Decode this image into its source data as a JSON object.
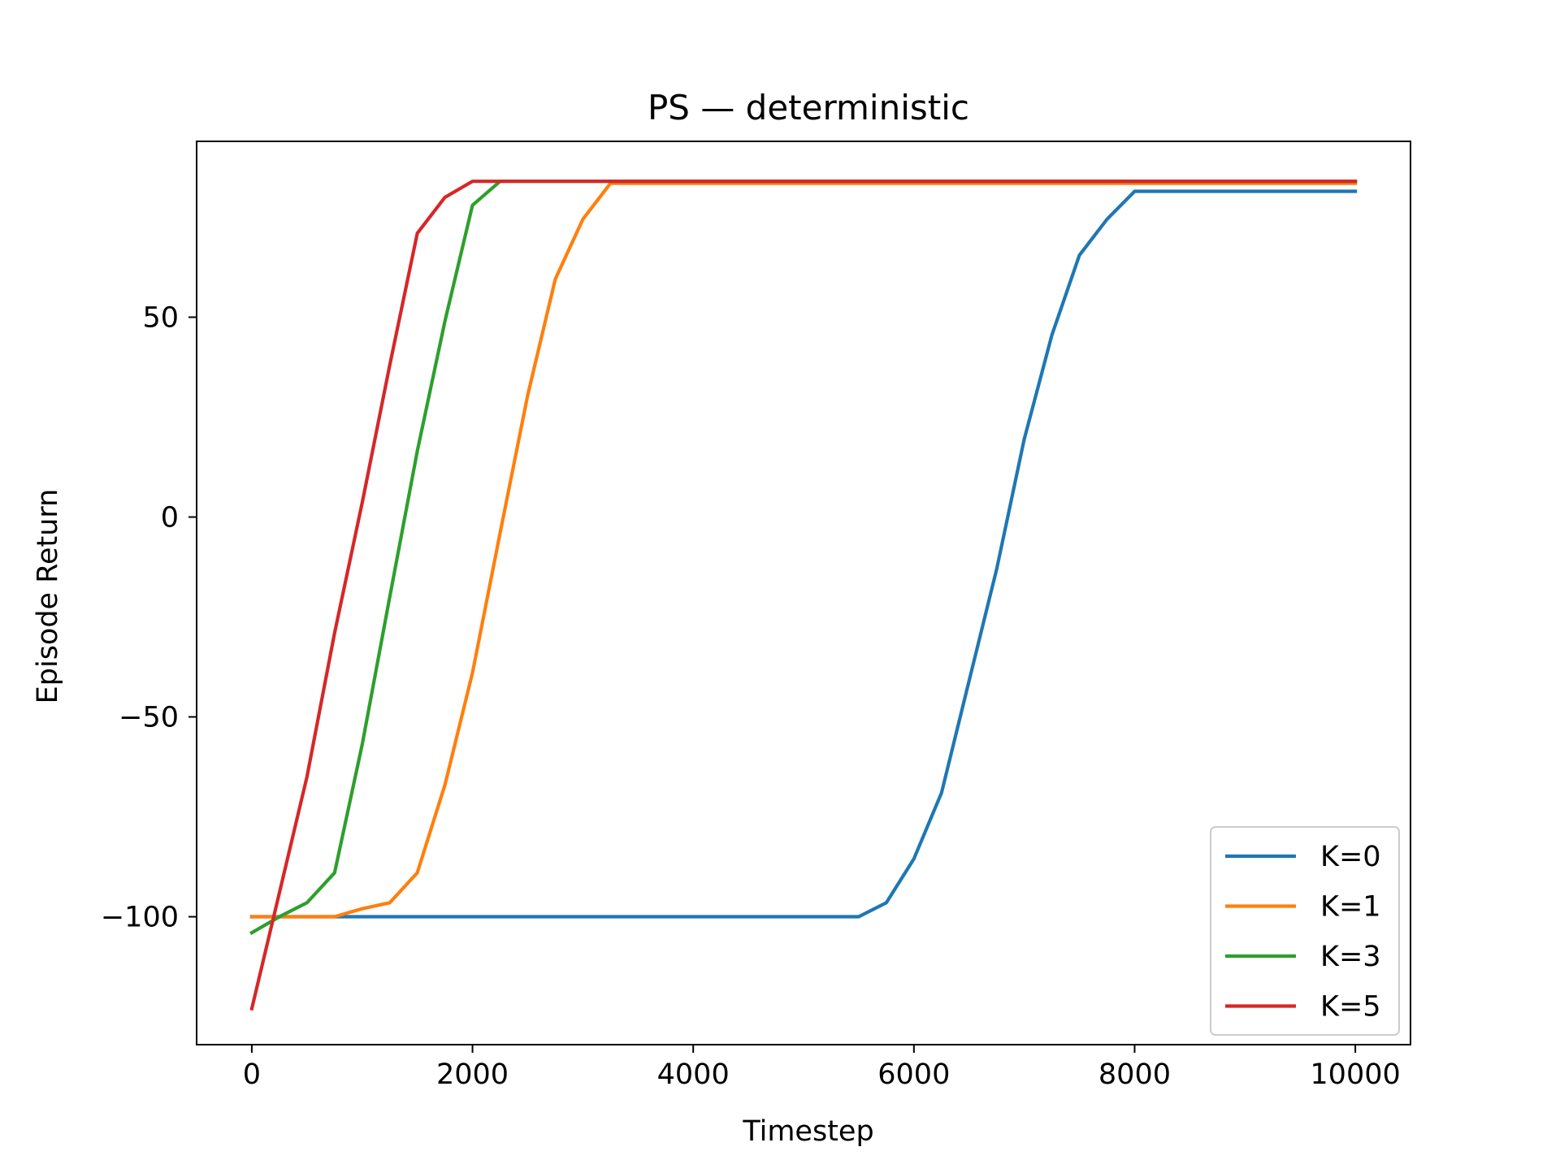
{
  "chart_data": {
    "type": "line",
    "title": "PS — deterministic",
    "xlabel": "Timestep",
    "ylabel": "Episode Return",
    "xlim": [
      -500,
      10500
    ],
    "ylim": [
      -132,
      94
    ],
    "xticks": [
      0,
      2000,
      4000,
      6000,
      8000,
      10000
    ],
    "xtick_labels": [
      "0",
      "2000",
      "4000",
      "6000",
      "8000",
      "10000"
    ],
    "yticks": [
      -100,
      -50,
      0,
      50
    ],
    "ytick_labels": [
      "−100",
      "−50",
      "0",
      "50"
    ],
    "grid": false,
    "legend_position": "lower-right",
    "series": [
      {
        "name": "K=0",
        "color": "#1f77b4",
        "x": [
          0,
          250,
          500,
          750,
          1000,
          1500,
          2000,
          3000,
          4000,
          5000,
          5500,
          5750,
          6000,
          6250,
          6500,
          6750,
          7000,
          7250,
          7500,
          7750,
          8000,
          8500,
          9000,
          9500,
          10000
        ],
        "y": [
          -100,
          -100,
          -100,
          -100,
          -100,
          -100,
          -100,
          -100,
          -100,
          -100,
          -100,
          -96.5,
          -85.5,
          -69,
          -41,
          -13,
          19.5,
          45.5,
          65.5,
          74.5,
          81.5,
          81.5,
          81.5,
          81.5,
          81.5
        ]
      },
      {
        "name": "K=1",
        "color": "#ff7f0e",
        "x": [
          0,
          250,
          500,
          750,
          1000,
          1250,
          1500,
          1750,
          2000,
          2250,
          2500,
          2750,
          3000,
          3250,
          4000,
          5000,
          6000,
          7000,
          8000,
          9000,
          10000
        ],
        "y": [
          -100,
          -100,
          -100,
          -100,
          -98,
          -96.5,
          -89,
          -67,
          -39,
          -4,
          30.5,
          59.5,
          74.5,
          83.5,
          83.5,
          83.5,
          83.5,
          83.5,
          83.5,
          83.5,
          83.5
        ]
      },
      {
        "name": "K=3",
        "color": "#2ca02c",
        "x": [
          0,
          250,
          500,
          750,
          1000,
          1250,
          1500,
          1750,
          2000,
          2250,
          3000,
          4000,
          5000,
          6000,
          7000,
          8000,
          9000,
          10000
        ],
        "y": [
          -104,
          -100,
          -96.5,
          -89,
          -57,
          -20,
          16.5,
          49,
          78,
          84,
          84,
          84,
          84,
          84,
          84,
          84,
          84,
          84
        ]
      },
      {
        "name": "K=5",
        "color": "#d62728",
        "x": [
          0,
          250,
          500,
          750,
          1000,
          1250,
          1500,
          1750,
          2000,
          3000,
          4000,
          5000,
          6000,
          7000,
          8000,
          9000,
          10000
        ],
        "y": [
          -123,
          -94,
          -65,
          -29,
          3.5,
          38,
          71,
          80,
          84,
          84,
          84,
          84,
          84,
          84,
          84,
          84,
          84
        ]
      }
    ]
  }
}
